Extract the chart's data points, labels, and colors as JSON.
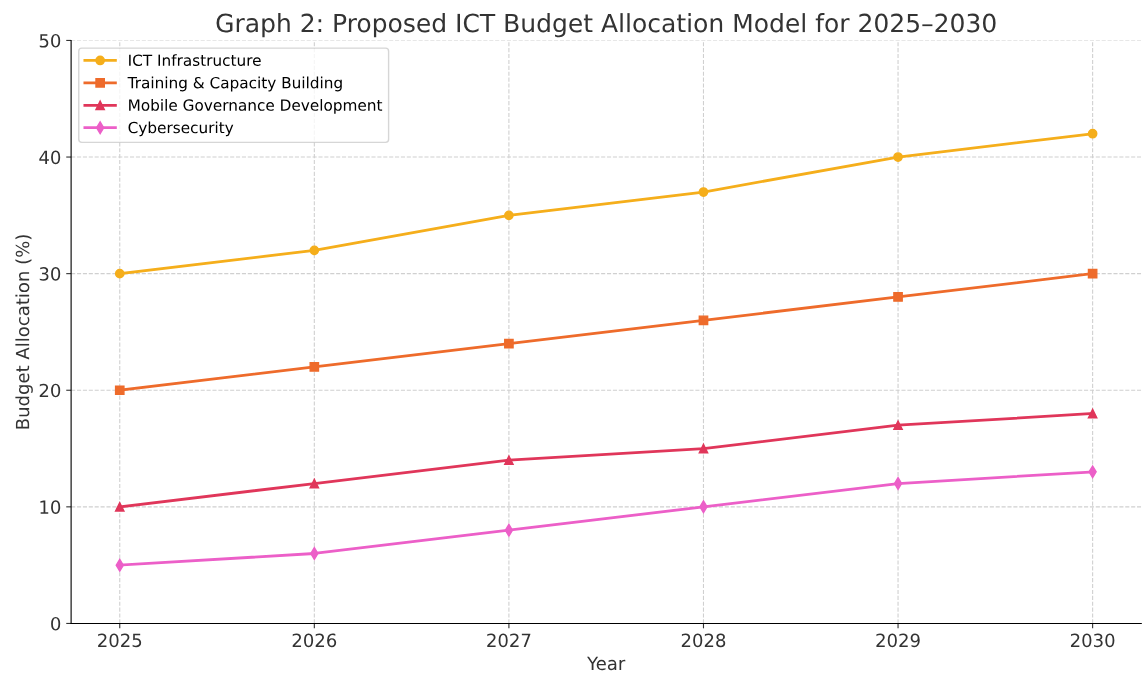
{
  "chart_data": {
    "type": "line",
    "title": "Graph 2: Proposed ICT Budget Allocation Model for 2025–2030",
    "xlabel": "Year",
    "ylabel": "Budget Allocation (%)",
    "x": [
      2025,
      2026,
      2027,
      2028,
      2029,
      2030
    ],
    "series": [
      {
        "name": "ICT Infrastructure",
        "color": "#f5ae1b",
        "marker": "circle",
        "values": [
          30,
          32,
          35,
          37,
          40,
          42
        ]
      },
      {
        "name": "Training & Capacity Building",
        "color": "#ee6b2b",
        "marker": "square",
        "values": [
          20,
          22,
          24,
          26,
          28,
          30
        ]
      },
      {
        "name": "Mobile Governance Development",
        "color": "#e0365a",
        "marker": "triangle",
        "values": [
          10,
          12,
          14,
          15,
          17,
          18
        ]
      },
      {
        "name": "Cybersecurity",
        "color": "#ec5fc8",
        "marker": "diamond",
        "values": [
          5,
          6,
          8,
          10,
          12,
          13
        ]
      }
    ],
    "xlim": [
      2024.75,
      2030.25
    ],
    "xticks": [
      2025,
      2026,
      2027,
      2028,
      2029,
      2030
    ],
    "ylim": [
      0,
      50
    ],
    "yticks": [
      0,
      10,
      20,
      30,
      40,
      50
    ],
    "grid": true,
    "legend": "top left",
    "line_style": "solid"
  }
}
